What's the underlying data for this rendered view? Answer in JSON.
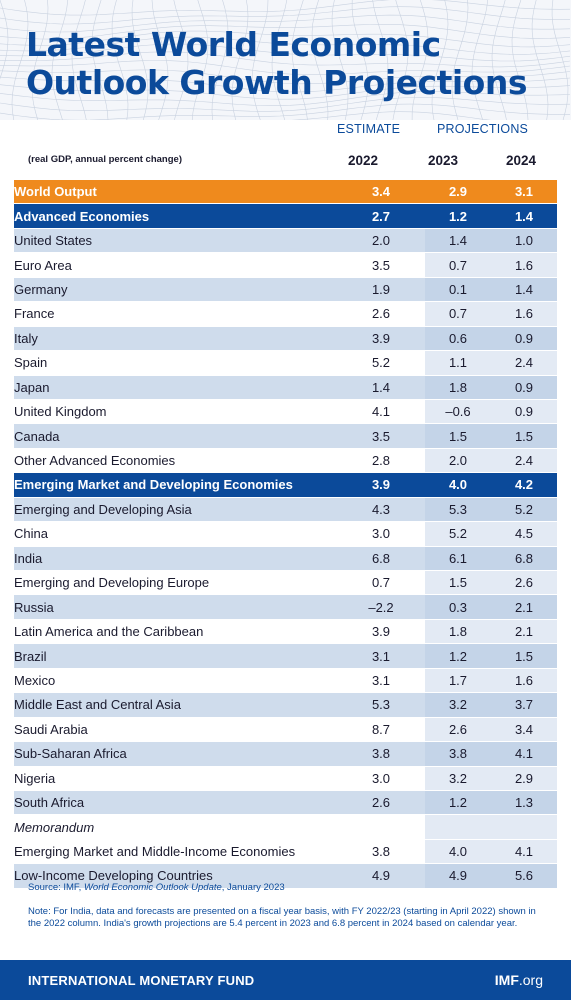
{
  "title_line1": "Latest World Economic",
  "title_line2": "Outlook Growth Projections",
  "header": {
    "estimate": "ESTIMATE",
    "projections": "PROJECTIONS",
    "unit_note": "(real GDP, annual percent change)",
    "years": [
      "2022",
      "2023",
      "2024"
    ]
  },
  "rows": [
    {
      "label": "World Output",
      "v": [
        "3.4",
        "2.9",
        "3.1"
      ],
      "style": "world",
      "indent": false
    },
    {
      "label": "Advanced Economies",
      "v": [
        "2.7",
        "1.2",
        "1.4"
      ],
      "style": "group",
      "indent": false
    },
    {
      "label": "United States",
      "v": [
        "2.0",
        "1.4",
        "1.0"
      ],
      "style": "shaded",
      "indent": false
    },
    {
      "label": "Euro Area",
      "v": [
        "3.5",
        "0.7",
        "1.6"
      ],
      "style": "plain",
      "indent": false
    },
    {
      "label": "Germany",
      "v": [
        "1.9",
        "0.1",
        "1.4"
      ],
      "style": "shaded",
      "indent": true
    },
    {
      "label": "France",
      "v": [
        "2.6",
        "0.7",
        "1.6"
      ],
      "style": "plain",
      "indent": true
    },
    {
      "label": "Italy",
      "v": [
        "3.9",
        "0.6",
        "0.9"
      ],
      "style": "shaded",
      "indent": true
    },
    {
      "label": "Spain",
      "v": [
        "5.2",
        "1.1",
        "2.4"
      ],
      "style": "plain",
      "indent": true
    },
    {
      "label": "Japan",
      "v": [
        "1.4",
        "1.8",
        "0.9"
      ],
      "style": "shaded",
      "indent": false
    },
    {
      "label": "United Kingdom",
      "v": [
        "4.1",
        "–0.6",
        "0.9"
      ],
      "style": "plain",
      "indent": false
    },
    {
      "label": "Canada",
      "v": [
        "3.5",
        "1.5",
        "1.5"
      ],
      "style": "shaded",
      "indent": false
    },
    {
      "label": "Other Advanced Economies",
      "v": [
        "2.8",
        "2.0",
        "2.4"
      ],
      "style": "plain",
      "indent": false
    },
    {
      "label": "Emerging Market and Developing Economies",
      "v": [
        "3.9",
        "4.0",
        "4.2"
      ],
      "style": "group",
      "indent": false
    },
    {
      "label": "Emerging and Developing Asia",
      "v": [
        "4.3",
        "5.3",
        "5.2"
      ],
      "style": "shaded",
      "indent": false
    },
    {
      "label": "China",
      "v": [
        "3.0",
        "5.2",
        "4.5"
      ],
      "style": "plain",
      "indent": true
    },
    {
      "label": "India",
      "v": [
        "6.8",
        "6.1",
        "6.8"
      ],
      "style": "shaded",
      "indent": true
    },
    {
      "label": "Emerging and Developing Europe",
      "v": [
        "0.7",
        "1.5",
        "2.6"
      ],
      "style": "plain",
      "indent": false
    },
    {
      "label": "Russia",
      "v": [
        "–2.2",
        "0.3",
        "2.1"
      ],
      "style": "shaded",
      "indent": true
    },
    {
      "label": "Latin America and the Caribbean",
      "v": [
        "3.9",
        "1.8",
        "2.1"
      ],
      "style": "plain",
      "indent": false
    },
    {
      "label": "Brazil",
      "v": [
        "3.1",
        "1.2",
        "1.5"
      ],
      "style": "shaded",
      "indent": true
    },
    {
      "label": "Mexico",
      "v": [
        "3.1",
        "1.7",
        "1.6"
      ],
      "style": "plain",
      "indent": true
    },
    {
      "label": "Middle East and Central Asia",
      "v": [
        "5.3",
        "3.2",
        "3.7"
      ],
      "style": "shaded",
      "indent": false
    },
    {
      "label": "Saudi Arabia",
      "v": [
        "8.7",
        "2.6",
        "3.4"
      ],
      "style": "plain",
      "indent": true
    },
    {
      "label": "Sub-Saharan Africa",
      "v": [
        "3.8",
        "3.8",
        "4.1"
      ],
      "style": "shaded",
      "indent": false
    },
    {
      "label": "Nigeria",
      "v": [
        "3.0",
        "3.2",
        "2.9"
      ],
      "style": "plain",
      "indent": true
    },
    {
      "label": "South Africa",
      "v": [
        "2.6",
        "1.2",
        "1.3"
      ],
      "style": "shaded",
      "indent": true
    },
    {
      "label": "Memorandum",
      "v": [
        "",
        "",
        ""
      ],
      "style": "plain memo",
      "indent": false
    },
    {
      "label": "Emerging Market and Middle-Income Economies",
      "v": [
        "3.8",
        "4.0",
        "4.1"
      ],
      "style": "plain",
      "indent": false
    },
    {
      "label": "Low-Income Developing Countries",
      "v": [
        "4.9",
        "4.9",
        "5.6"
      ],
      "style": "shaded",
      "indent": false
    }
  ],
  "source_prefix": "Source: IMF, ",
  "source_title": "World Economic Outlook Update",
  "source_suffix": ", January 2023",
  "note": "Note: For India, data and forecasts are presented on a fiscal year basis, with FY 2022/23 (starting in April 2022) shown in the 2022 column. India's growth projections are 5.4 percent in 2023 and 6.8 percent in 2024 based on calendar year.",
  "footer": {
    "org": "INTERNATIONAL MONETARY FUND",
    "site_bold": "IMF",
    "site_thin": ".org"
  },
  "colors": {
    "brand_blue": "#0b4a9a",
    "accent_orange": "#ef8a1d",
    "row_shade": "#cfdcec",
    "projection_shade": "#dfe7f2"
  }
}
